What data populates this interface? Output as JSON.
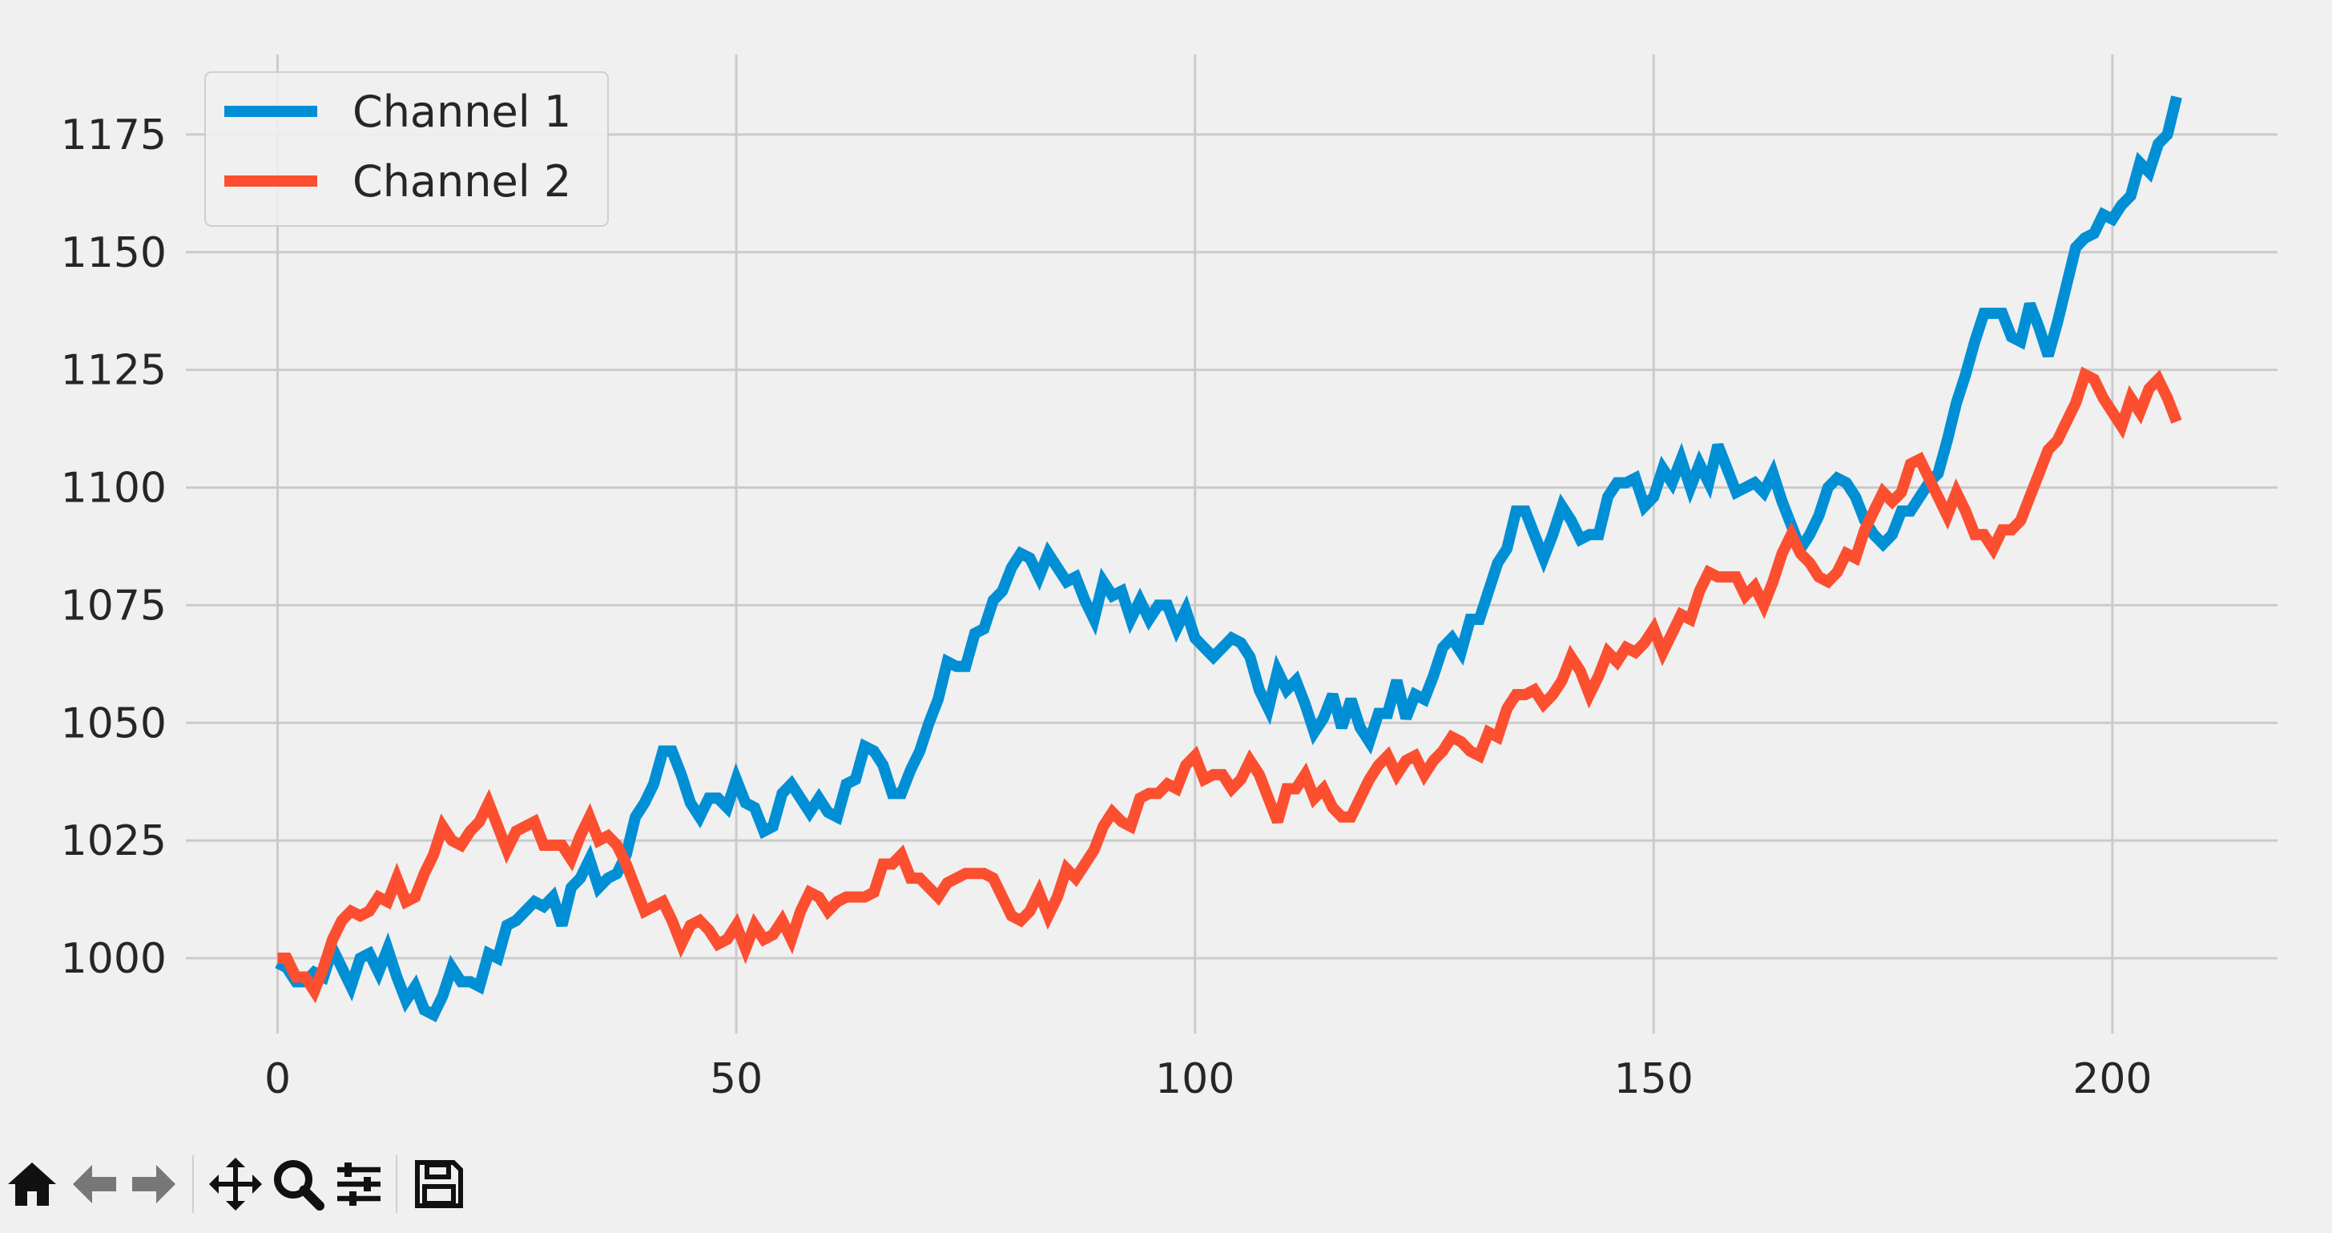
{
  "chart_data": {
    "type": "line",
    "title": "",
    "xlabel": "",
    "ylabel": "",
    "xlim": [
      -10,
      218
    ],
    "ylim": [
      984,
      1192
    ],
    "xticks": [
      0,
      50,
      100,
      150,
      200
    ],
    "yticks": [
      1000,
      1025,
      1050,
      1075,
      1100,
      1125,
      1150,
      1175
    ],
    "grid": true,
    "legend_position": "top-left",
    "series": [
      {
        "name": "Channel 1",
        "color": "#008fd5",
        "x": [
          0,
          1,
          2,
          3,
          4,
          5,
          6,
          7,
          8,
          9,
          10,
          11,
          12,
          13,
          14,
          15,
          16,
          17,
          18,
          19,
          20,
          21,
          22,
          23,
          24,
          25,
          26,
          27,
          28,
          29,
          30,
          31,
          32,
          33,
          34,
          35,
          36,
          37,
          38,
          39,
          40,
          41,
          42,
          43,
          44,
          45,
          46,
          47,
          48,
          49,
          50,
          51,
          52,
          53,
          54,
          55,
          56,
          57,
          58,
          59,
          60,
          61,
          62,
          63,
          64,
          65,
          66,
          67,
          68,
          69,
          70,
          71,
          72,
          73,
          74,
          75,
          76,
          77,
          78,
          79,
          80,
          81,
          82,
          83,
          84,
          85,
          86,
          87,
          88,
          89,
          90,
          91,
          92,
          93,
          94,
          95,
          96,
          97,
          98,
          99,
          100,
          101,
          102,
          103,
          104,
          105,
          106,
          107,
          108,
          109,
          110,
          111,
          112,
          113,
          114,
          115,
          116,
          117,
          118,
          119,
          120,
          121,
          122,
          123,
          124,
          125,
          126,
          127,
          128,
          129,
          130,
          131,
          132,
          133,
          134,
          135,
          136,
          137,
          138,
          139,
          140,
          141,
          142,
          143,
          144,
          145,
          146,
          147,
          148,
          149,
          150,
          151,
          152,
          153,
          154,
          155,
          156,
          157,
          158,
          159,
          160,
          161,
          162,
          163,
          164,
          165,
          166,
          167,
          168,
          169,
          170,
          171,
          172,
          173,
          174,
          175,
          176,
          177,
          178,
          179,
          180,
          181,
          182,
          183,
          184,
          185,
          186,
          187,
          188,
          189,
          190,
          191,
          192,
          193,
          194,
          195,
          196,
          197,
          198,
          199,
          200,
          201,
          202,
          203,
          204,
          205,
          206,
          207
        ],
        "values": [
          999,
          998,
          995,
          995,
          997,
          996,
          1002,
          998,
          994,
          1000,
          1001,
          997,
          1002,
          996,
          991,
          994,
          989,
          988,
          992,
          998,
          995,
          995,
          994,
          1001,
          1000,
          1007,
          1008,
          1010,
          1012,
          1011,
          1013,
          1007,
          1015,
          1017,
          1021,
          1015,
          1017,
          1018,
          1022,
          1030,
          1033,
          1037,
          1044,
          1044,
          1039,
          1033,
          1030,
          1034,
          1034,
          1032,
          1038,
          1033,
          1032,
          1027,
          1028,
          1035,
          1037,
          1034,
          1031,
          1034,
          1031,
          1030,
          1037,
          1038,
          1045,
          1044,
          1041,
          1035,
          1035,
          1040,
          1044,
          1050,
          1055,
          1063,
          1062,
          1062,
          1069,
          1070,
          1076,
          1078,
          1083,
          1086,
          1085,
          1081,
          1086,
          1083,
          1080,
          1081,
          1076,
          1072,
          1080,
          1077,
          1078,
          1072,
          1076,
          1072,
          1075,
          1075,
          1070,
          1074,
          1068,
          1066,
          1064,
          1066,
          1068,
          1067,
          1064,
          1057,
          1053,
          1061,
          1057,
          1059,
          1054,
          1048,
          1051,
          1056,
          1049,
          1055,
          1049,
          1046,
          1052,
          1052,
          1059,
          1051,
          1056,
          1055,
          1060,
          1066,
          1068,
          1065,
          1072,
          1072,
          1078,
          1084,
          1087,
          1095,
          1095,
          1090,
          1085,
          1090,
          1096,
          1093,
          1089,
          1090,
          1090,
          1098,
          1101,
          1101,
          1102,
          1096,
          1098,
          1104,
          1101,
          1106,
          1100,
          1105,
          1101,
          1109,
          1104,
          1099,
          1100,
          1101,
          1099,
          1103,
          1097,
          1092,
          1087,
          1090,
          1094,
          1100,
          1102,
          1101,
          1098,
          1093,
          1090,
          1088,
          1090,
          1095,
          1095,
          1098,
          1101,
          1103,
          1110,
          1118,
          1124,
          1131,
          1137,
          1137,
          1137,
          1132,
          1131,
          1139,
          1134,
          1128,
          1135,
          1143,
          1151,
          1153,
          1154,
          1158,
          1157,
          1160,
          1162,
          1169,
          1167,
          1173,
          1175,
          1183
        ]
      },
      {
        "name": "Channel 2",
        "color": "#fc4f30",
        "x": [
          0,
          1,
          2,
          3,
          4,
          5,
          6,
          7,
          8,
          9,
          10,
          11,
          12,
          13,
          14,
          15,
          16,
          17,
          18,
          19,
          20,
          21,
          22,
          23,
          24,
          25,
          26,
          27,
          28,
          29,
          30,
          31,
          32,
          33,
          34,
          35,
          36,
          37,
          38,
          39,
          40,
          41,
          42,
          43,
          44,
          45,
          46,
          47,
          48,
          49,
          50,
          51,
          52,
          53,
          54,
          55,
          56,
          57,
          58,
          59,
          60,
          61,
          62,
          63,
          64,
          65,
          66,
          67,
          68,
          69,
          70,
          71,
          72,
          73,
          74,
          75,
          76,
          77,
          78,
          79,
          80,
          81,
          82,
          83,
          84,
          85,
          86,
          87,
          88,
          89,
          90,
          91,
          92,
          93,
          94,
          95,
          96,
          97,
          98,
          99,
          100,
          101,
          102,
          103,
          104,
          105,
          106,
          107,
          108,
          109,
          110,
          111,
          112,
          113,
          114,
          115,
          116,
          117,
          118,
          119,
          120,
          121,
          122,
          123,
          124,
          125,
          126,
          127,
          128,
          129,
          130,
          131,
          132,
          133,
          134,
          135,
          136,
          137,
          138,
          139,
          140,
          141,
          142,
          143,
          144,
          145,
          146,
          147,
          148,
          149,
          150,
          151,
          152,
          153,
          154,
          155,
          156,
          157,
          158,
          159,
          160,
          161,
          162,
          163,
          164,
          165,
          166,
          167,
          168,
          169,
          170,
          171,
          172,
          173,
          174,
          175,
          176,
          177,
          178,
          179,
          180,
          181,
          182,
          183,
          184,
          185,
          186,
          187,
          188,
          189,
          190,
          191,
          192,
          193,
          194,
          195,
          196,
          197,
          198,
          199,
          200,
          201,
          202,
          203,
          204,
          205,
          206,
          207
        ],
        "values": [
          1000,
          1000,
          996,
          996,
          993,
          998,
          1004,
          1008,
          1010,
          1009,
          1010,
          1013,
          1012,
          1017,
          1012,
          1013,
          1018,
          1022,
          1028,
          1025,
          1024,
          1027,
          1029,
          1033,
          1028,
          1023,
          1027,
          1028,
          1029,
          1024,
          1024,
          1024,
          1021,
          1026,
          1030,
          1025,
          1026,
          1024,
          1020,
          1015,
          1010,
          1011,
          1012,
          1008,
          1003,
          1007,
          1008,
          1006,
          1003,
          1004,
          1007,
          1002,
          1007,
          1004,
          1005,
          1008,
          1004,
          1010,
          1014,
          1013,
          1010,
          1012,
          1013,
          1013,
          1013,
          1014,
          1020,
          1020,
          1022,
          1017,
          1017,
          1015,
          1013,
          1016,
          1017,
          1018,
          1018,
          1018,
          1017,
          1013,
          1009,
          1008,
          1010,
          1014,
          1009,
          1013,
          1019,
          1017,
          1020,
          1023,
          1028,
          1031,
          1029,
          1028,
          1034,
          1035,
          1035,
          1037,
          1036,
          1041,
          1043,
          1038,
          1039,
          1039,
          1036,
          1038,
          1042,
          1039,
          1034,
          1029,
          1036,
          1036,
          1039,
          1034,
          1036,
          1032,
          1030,
          1030,
          1034,
          1038,
          1041,
          1043,
          1039,
          1042,
          1043,
          1039,
          1042,
          1044,
          1047,
          1046,
          1044,
          1043,
          1048,
          1047,
          1053,
          1056,
          1056,
          1057,
          1054,
          1056,
          1059,
          1064,
          1061,
          1056,
          1060,
          1065,
          1063,
          1066,
          1065,
          1067,
          1070,
          1065,
          1069,
          1073,
          1072,
          1078,
          1082,
          1081,
          1081,
          1081,
          1077,
          1079,
          1075,
          1080,
          1086,
          1090,
          1086,
          1084,
          1081,
          1080,
          1082,
          1086,
          1085,
          1091,
          1095,
          1099,
          1097,
          1099,
          1105,
          1106,
          1102,
          1098,
          1094,
          1099,
          1095,
          1090,
          1090,
          1087,
          1091,
          1091,
          1093,
          1098,
          1103,
          1108,
          1110,
          1114,
          1118,
          1124,
          1123,
          1119,
          1116,
          1113,
          1119,
          1116,
          1121,
          1123,
          1119,
          1114
        ]
      }
    ]
  },
  "toolbar": {
    "buttons": [
      {
        "name": "home-button",
        "icon": "home-icon"
      },
      {
        "name": "back-button",
        "icon": "arrow-left-icon"
      },
      {
        "name": "forward-button",
        "icon": "arrow-right-icon"
      },
      {
        "name": "pan-button",
        "icon": "move-icon"
      },
      {
        "name": "zoom-button",
        "icon": "magnifier-icon"
      },
      {
        "name": "configure-subplots-button",
        "icon": "sliders-icon"
      },
      {
        "name": "save-button",
        "icon": "floppy-disk-icon"
      }
    ]
  }
}
